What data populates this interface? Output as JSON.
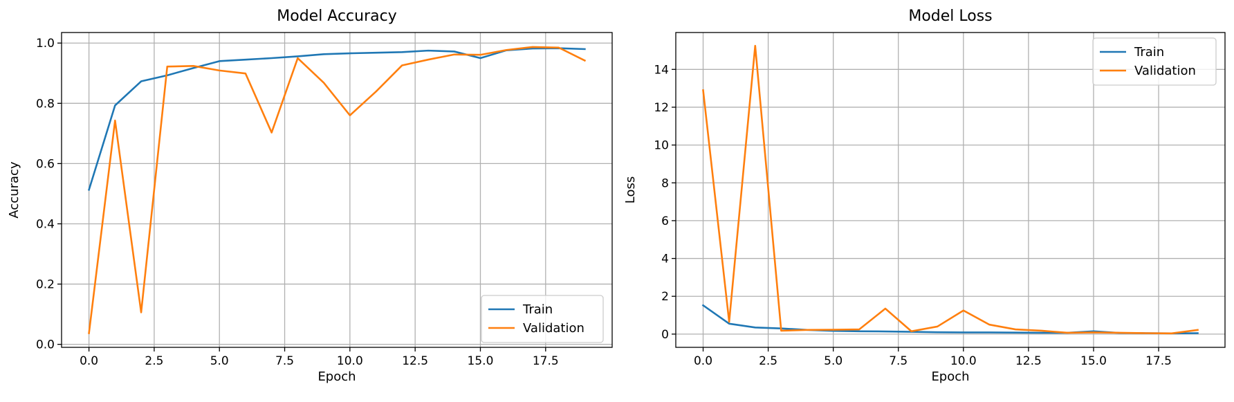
{
  "colors": {
    "train": "#1f77b4",
    "validation": "#ff7f0e"
  },
  "chart_data": [
    {
      "type": "line",
      "title": "Model Accuracy",
      "xlabel": "Epoch",
      "ylabel": "Accuracy",
      "xlim": [
        -1.05,
        20.05
      ],
      "ylim": [
        -0.01,
        1.035
      ],
      "xticks": [
        0.0,
        2.5,
        5.0,
        7.5,
        10.0,
        12.5,
        15.0,
        17.5
      ],
      "xtick_labels": [
        "0.0",
        "2.5",
        "5.0",
        "7.5",
        "10.0",
        "12.5",
        "15.0",
        "17.5"
      ],
      "yticks": [
        0.0,
        0.2,
        0.4,
        0.6,
        0.8,
        1.0
      ],
      "ytick_labels": [
        "0.0",
        "0.2",
        "0.4",
        "0.6",
        "0.8",
        "1.0"
      ],
      "grid": true,
      "legend_position": "lower-right",
      "x": [
        0,
        1,
        2,
        3,
        4,
        5,
        6,
        7,
        8,
        9,
        10,
        11,
        12,
        13,
        14,
        15,
        16,
        17,
        18,
        19
      ],
      "series": [
        {
          "name": "Train",
          "color_key": "train",
          "values": [
            0.513,
            0.793,
            0.873,
            0.893,
            0.917,
            0.94,
            0.945,
            0.95,
            0.956,
            0.963,
            0.966,
            0.968,
            0.97,
            0.975,
            0.972,
            0.95,
            0.976,
            0.982,
            0.983,
            0.98
          ]
        },
        {
          "name": "Validation",
          "color_key": "validation",
          "values": [
            0.037,
            0.743,
            0.106,
            0.922,
            0.924,
            0.909,
            0.899,
            0.703,
            0.95,
            0.868,
            0.76,
            0.839,
            0.926,
            0.945,
            0.962,
            0.961,
            0.977,
            0.987,
            0.985,
            0.942
          ]
        }
      ]
    },
    {
      "type": "line",
      "title": "Model Loss",
      "xlabel": "Epoch",
      "ylabel": "Loss",
      "xlim": [
        -1.05,
        20.05
      ],
      "ylim": [
        -0.7,
        15.95
      ],
      "xticks": [
        0.0,
        2.5,
        5.0,
        7.5,
        10.0,
        12.5,
        15.0,
        17.5
      ],
      "xtick_labels": [
        "0.0",
        "2.5",
        "5.0",
        "7.5",
        "10.0",
        "12.5",
        "15.0",
        "17.5"
      ],
      "yticks": [
        0,
        2,
        4,
        6,
        8,
        10,
        12,
        14
      ],
      "ytick_labels": [
        "0",
        "2",
        "4",
        "6",
        "8",
        "10",
        "12",
        "14"
      ],
      "grid": true,
      "legend_position": "upper-right",
      "x": [
        0,
        1,
        2,
        3,
        4,
        5,
        6,
        7,
        8,
        9,
        10,
        11,
        12,
        13,
        14,
        15,
        16,
        17,
        18,
        19
      ],
      "series": [
        {
          "name": "Train",
          "color_key": "train",
          "values": [
            1.52,
            0.55,
            0.35,
            0.3,
            0.22,
            0.17,
            0.15,
            0.14,
            0.12,
            0.1,
            0.09,
            0.09,
            0.08,
            0.07,
            0.07,
            0.15,
            0.06,
            0.05,
            0.04,
            0.05
          ]
        },
        {
          "name": "Validation",
          "color_key": "validation",
          "values": [
            12.9,
            0.65,
            15.25,
            0.18,
            0.22,
            0.23,
            0.25,
            1.35,
            0.15,
            0.4,
            1.25,
            0.5,
            0.25,
            0.18,
            0.07,
            0.09,
            0.07,
            0.05,
            0.04,
            0.22
          ]
        }
      ]
    }
  ]
}
